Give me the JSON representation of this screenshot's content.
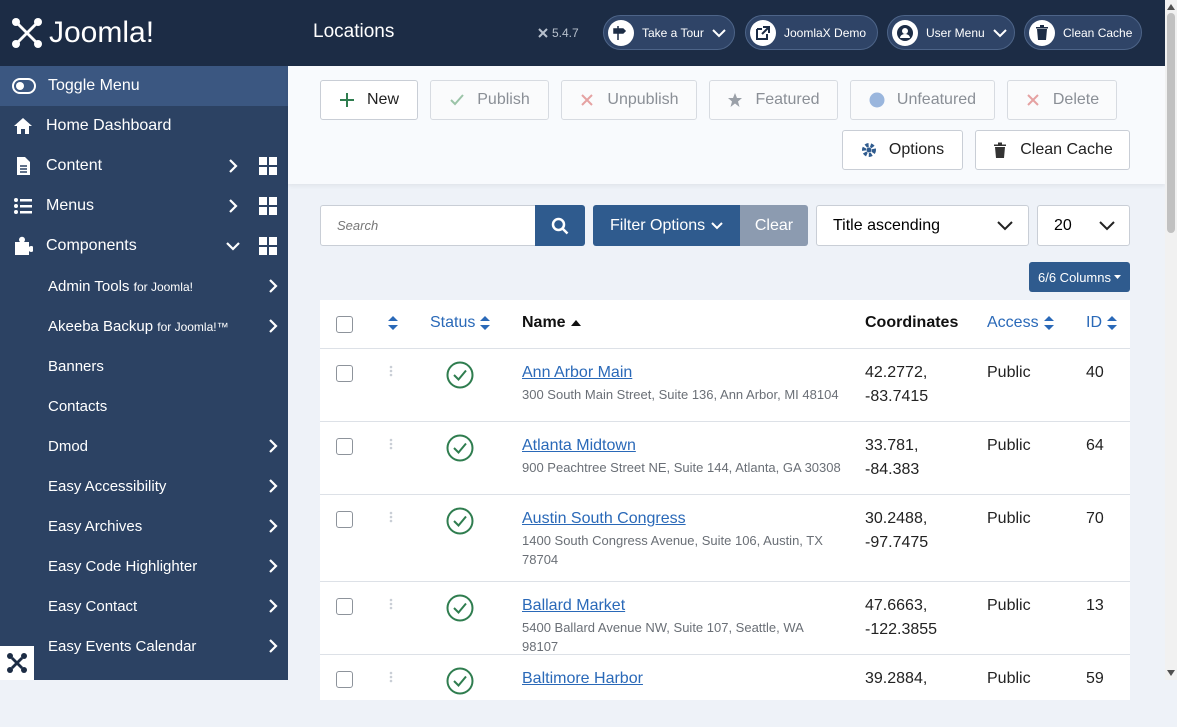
{
  "sidebar": {
    "brand": "Joomla!",
    "toggle": "Toggle Menu",
    "items": [
      {
        "label": "Home Dashboard"
      },
      {
        "label": "Content"
      },
      {
        "label": "Menus"
      },
      {
        "label": "Components"
      }
    ],
    "submenu": [
      {
        "label": "Admin Tools",
        "suffix": "for Joomla!"
      },
      {
        "label": "Akeeba Backup",
        "suffix": "for Joomla!™"
      },
      {
        "label": "Banners"
      },
      {
        "label": "Contacts"
      },
      {
        "label": "Dmod"
      },
      {
        "label": "Easy Accessibility"
      },
      {
        "label": "Easy Archives"
      },
      {
        "label": "Easy Code Highlighter"
      },
      {
        "label": "Easy Contact"
      },
      {
        "label": "Easy Events Calendar"
      }
    ]
  },
  "header": {
    "title": "Locations",
    "version": "5.4.7",
    "buttons": [
      "Take a Tour",
      "JoomlaX Demo",
      "User Menu",
      "Clean Cache"
    ]
  },
  "toolbar": {
    "buttons": [
      "New",
      "Publish",
      "Unpublish",
      "Featured",
      "Unfeatured",
      "Delete",
      "Options",
      "Clean Cache"
    ]
  },
  "filters": {
    "search_placeholder": "Search",
    "filter_options": "Filter Options",
    "clear": "Clear",
    "ordering": "Title ascending",
    "limit": "20",
    "columns": "6/6 Columns"
  },
  "table": {
    "headers": [
      "Status",
      "Name",
      "Coordinates",
      "Access",
      "ID"
    ],
    "rows": [
      {
        "name": "Ann Arbor Main",
        "address": "300 South Main Street, Suite 136, Ann Arbor, MI 48104",
        "coordinates": "42.2772, -83.7415",
        "access": "Public",
        "id": "40"
      },
      {
        "name": "Atlanta Midtown",
        "address": "900 Peachtree Street NE, Suite 144, Atlanta, GA 30308",
        "coordinates": "33.781, -84.383",
        "access": "Public",
        "id": "64"
      },
      {
        "name": "Austin South Congress",
        "address": "1400 South Congress Avenue, Suite 106, Austin, TX 78704",
        "coordinates": "30.2488, -97.7475",
        "access": "Public",
        "id": "70"
      },
      {
        "name": "Ballard Market",
        "address": "5400 Ballard Avenue NW, Suite 107, Seattle, WA 98107",
        "coordinates": "47.6663, -122.3855",
        "access": "Public",
        "id": "13"
      },
      {
        "name": "Baltimore Harbor",
        "coordinates": "39.2884,",
        "access": "Public",
        "id": "59"
      }
    ]
  }
}
